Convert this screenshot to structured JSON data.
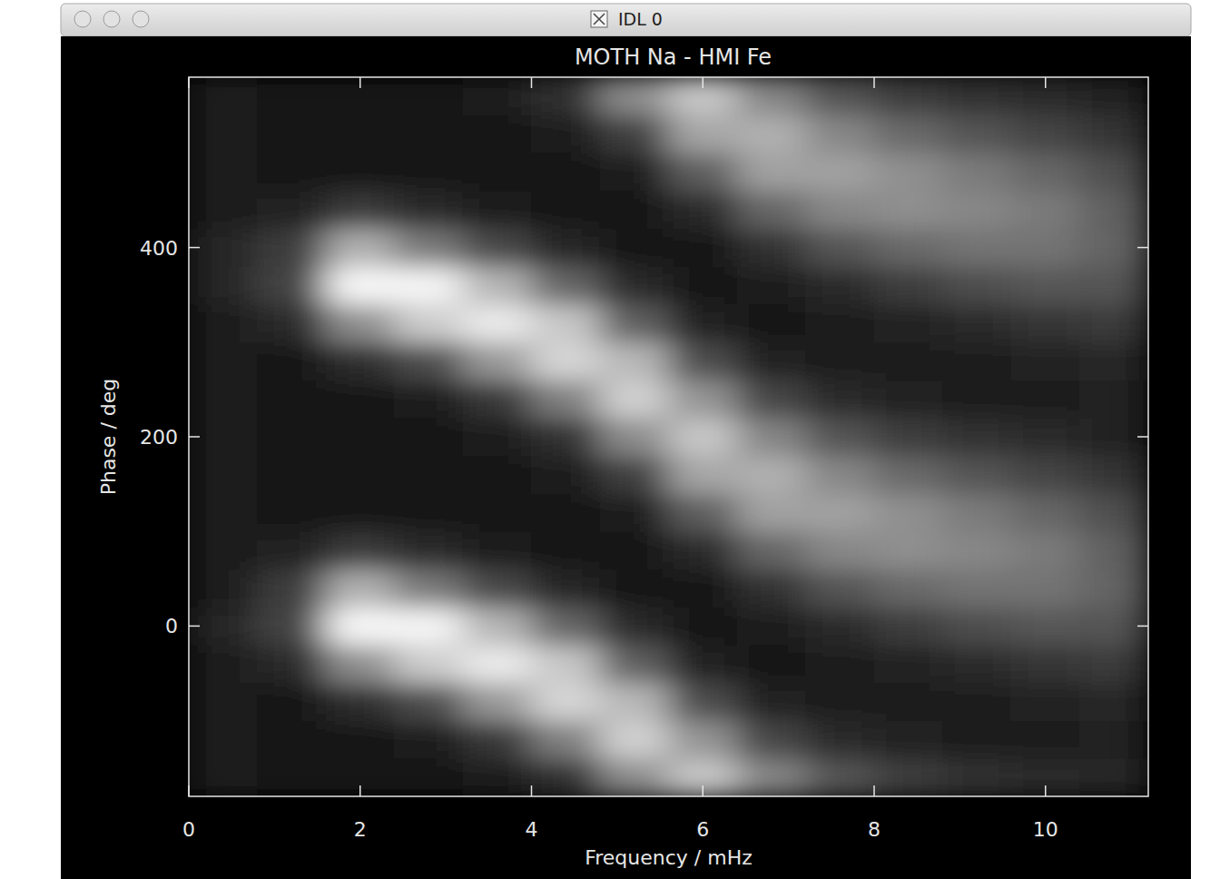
{
  "window_title": "IDL 0",
  "chart_data": {
    "type": "heatmap",
    "title": "MOTH Na - HMI Fe",
    "x_label": "Frequency / mHz",
    "y_label": "Phase / deg",
    "xlim": [
      0,
      11.2
    ],
    "ylim": [
      -180,
      580
    ],
    "xticks": [
      0,
      2,
      4,
      6,
      8,
      10
    ],
    "yticks": [
      0,
      200,
      400
    ],
    "zlim": [
      0,
      1
    ],
    "color": "gray",
    "xbins": [
      0,
      0.8,
      1.6,
      2.4,
      3.2,
      4.0,
      4.8,
      5.6,
      6.4,
      7.2,
      8.0,
      8.8,
      9.6,
      10.4,
      11.2
    ],
    "ybins": [
      -180,
      -140,
      -100,
      -60,
      -20,
      20,
      60,
      100,
      140,
      180,
      220,
      260,
      300,
      340,
      380,
      420,
      460,
      500,
      540,
      580
    ],
    "z": [
      [
        0.12,
        0.08,
        0.08,
        0.08,
        0.1,
        0.19,
        0.55,
        0.78,
        0.52,
        0.33,
        0.24,
        0.2,
        0.16,
        0.15
      ],
      [
        0.12,
        0.08,
        0.09,
        0.11,
        0.22,
        0.5,
        0.82,
        0.58,
        0.28,
        0.17,
        0.14,
        0.12,
        0.12,
        0.13
      ],
      [
        0.12,
        0.09,
        0.18,
        0.3,
        0.6,
        0.84,
        0.72,
        0.3,
        0.14,
        0.1,
        0.1,
        0.12,
        0.14,
        0.15
      ],
      [
        0.12,
        0.16,
        0.56,
        0.8,
        0.92,
        0.78,
        0.38,
        0.14,
        0.09,
        0.1,
        0.14,
        0.17,
        0.21,
        0.23
      ],
      [
        0.15,
        0.27,
        0.97,
        0.96,
        0.71,
        0.4,
        0.16,
        0.09,
        0.1,
        0.17,
        0.24,
        0.3,
        0.34,
        0.33
      ],
      [
        0.12,
        0.24,
        0.69,
        0.48,
        0.29,
        0.15,
        0.09,
        0.09,
        0.2,
        0.33,
        0.41,
        0.45,
        0.45,
        0.39
      ],
      [
        0.12,
        0.13,
        0.23,
        0.16,
        0.11,
        0.09,
        0.09,
        0.16,
        0.4,
        0.53,
        0.56,
        0.53,
        0.48,
        0.38
      ],
      [
        0.12,
        0.09,
        0.09,
        0.08,
        0.08,
        0.08,
        0.11,
        0.37,
        0.63,
        0.63,
        0.56,
        0.48,
        0.4,
        0.31
      ],
      [
        0.12,
        0.08,
        0.08,
        0.08,
        0.09,
        0.1,
        0.25,
        0.65,
        0.69,
        0.53,
        0.41,
        0.33,
        0.27,
        0.21
      ],
      [
        0.12,
        0.08,
        0.08,
        0.08,
        0.1,
        0.19,
        0.55,
        0.78,
        0.52,
        0.33,
        0.24,
        0.2,
        0.16,
        0.14
      ],
      [
        0.12,
        0.08,
        0.09,
        0.11,
        0.22,
        0.5,
        0.82,
        0.58,
        0.28,
        0.17,
        0.14,
        0.12,
        0.12,
        0.13
      ],
      [
        0.12,
        0.09,
        0.18,
        0.3,
        0.6,
        0.84,
        0.72,
        0.3,
        0.14,
        0.1,
        0.1,
        0.12,
        0.13,
        0.15
      ],
      [
        0.12,
        0.16,
        0.56,
        0.8,
        0.92,
        0.78,
        0.38,
        0.14,
        0.09,
        0.1,
        0.14,
        0.17,
        0.21,
        0.23
      ],
      [
        0.15,
        0.27,
        0.97,
        0.96,
        0.71,
        0.4,
        0.16,
        0.09,
        0.1,
        0.17,
        0.24,
        0.3,
        0.34,
        0.33
      ],
      [
        0.15,
        0.24,
        0.69,
        0.48,
        0.29,
        0.15,
        0.09,
        0.09,
        0.2,
        0.33,
        0.41,
        0.45,
        0.45,
        0.39
      ],
      [
        0.12,
        0.13,
        0.23,
        0.16,
        0.11,
        0.09,
        0.09,
        0.16,
        0.4,
        0.53,
        0.56,
        0.53,
        0.48,
        0.38
      ],
      [
        0.12,
        0.09,
        0.09,
        0.08,
        0.09,
        0.08,
        0.11,
        0.37,
        0.63,
        0.63,
        0.56,
        0.48,
        0.4,
        0.31
      ],
      [
        0.12,
        0.08,
        0.08,
        0.08,
        0.08,
        0.1,
        0.25,
        0.65,
        0.69,
        0.53,
        0.41,
        0.33,
        0.27,
        0.21
      ],
      [
        0.12,
        0.08,
        0.08,
        0.08,
        0.1,
        0.19,
        0.55,
        0.78,
        0.52,
        0.33,
        0.24,
        0.2,
        0.16,
        0.14
      ]
    ]
  }
}
